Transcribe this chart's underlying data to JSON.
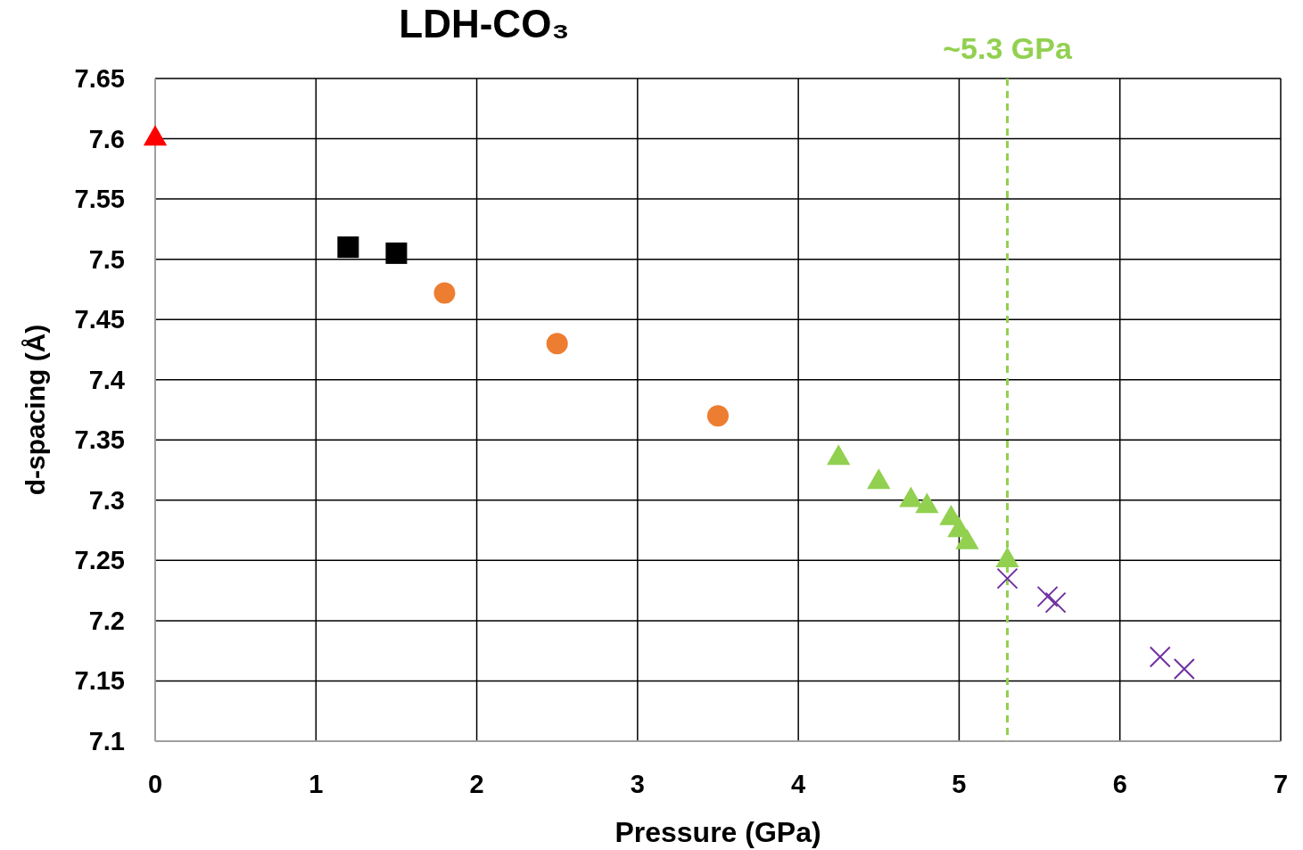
{
  "chart_data": {
    "type": "scatter",
    "title": "LDH-CO₃",
    "xlabel": "Pressure (GPa)",
    "ylabel": "d-spacing (Å)",
    "xlim": [
      0,
      7
    ],
    "xticks": [
      0,
      1,
      2,
      3,
      4,
      5,
      6,
      7
    ],
    "ylim": [
      7.1,
      7.65
    ],
    "yticks": [
      7.1,
      7.15,
      7.2,
      7.25,
      7.3,
      7.35,
      7.4,
      7.45,
      7.5,
      7.55,
      7.6,
      7.65
    ],
    "grid": true,
    "series": [
      {
        "color": "#ff0000",
        "marker": "triangle",
        "x": [
          0
        ],
        "values": [
          7.6
        ]
      },
      {
        "color": "#000000",
        "marker": "square",
        "x": [
          1.2,
          1.5
        ],
        "values": [
          7.51,
          7.505
        ]
      },
      {
        "color": "#ed7d31",
        "marker": "circle",
        "x": [
          1.8,
          2.5,
          3.5
        ],
        "values": [
          7.472,
          7.43,
          7.37
        ]
      },
      {
        "color": "#92d050",
        "marker": "triangle",
        "x": [
          4.25,
          4.5,
          4.7,
          4.8,
          4.95,
          5.0,
          5.05,
          5.3
        ],
        "values": [
          7.335,
          7.315,
          7.3,
          7.295,
          7.285,
          7.275,
          7.265,
          7.25
        ]
      },
      {
        "color": "#7030a0",
        "marker": "cross",
        "x": [
          5.3,
          5.55,
          5.6,
          6.25,
          6.4
        ],
        "values": [
          7.235,
          7.22,
          7.215,
          7.17,
          7.16
        ]
      }
    ],
    "ref_lines": [
      {
        "axis": "x",
        "value": 5.3,
        "label": "~5.3 GPa",
        "color": "#92d050",
        "line_style": "dashed"
      }
    ]
  }
}
